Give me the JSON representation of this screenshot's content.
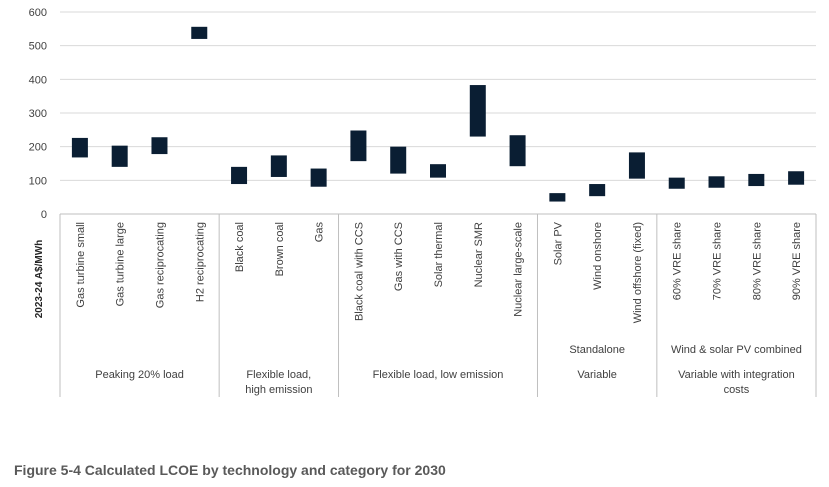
{
  "chart_data": {
    "type": "floating-bar",
    "ylabel": "2023-24 A$/MWh",
    "ylim": [
      0,
      600
    ],
    "yticks": [
      0,
      100,
      200,
      300,
      400,
      500,
      600
    ],
    "grid": true,
    "categories": [
      "Gas turbine small",
      "Gas turbine large",
      "Gas reciprocating",
      "H2 reciprocating",
      "Black coal",
      "Brown coal",
      "Gas",
      "Black coal with CCS",
      "Gas with CCS",
      "Solar thermal",
      "Nuclear SMR",
      "Nuclear large-scale",
      "Solar PV",
      "Wind onshore",
      "Wind offshore (fixed)",
      "60% VRE share",
      "70% VRE share",
      "80% VRE share",
      "90% VRE share"
    ],
    "ranges": [
      [
        168,
        226
      ],
      [
        140,
        203
      ],
      [
        178,
        228
      ],
      [
        520,
        556
      ],
      [
        89,
        140
      ],
      [
        110,
        174
      ],
      [
        81,
        135
      ],
      [
        157,
        248
      ],
      [
        120,
        200
      ],
      [
        108,
        148
      ],
      [
        230,
        383
      ],
      [
        142,
        234
      ],
      [
        37,
        62
      ],
      [
        53,
        89
      ],
      [
        105,
        183
      ],
      [
        75,
        108
      ],
      [
        78,
        112
      ],
      [
        83,
        119
      ],
      [
        87,
        127
      ]
    ],
    "color": "#0a1e33",
    "groups": [
      {
        "label": "Peaking 20% load",
        "sublabel": "",
        "start": 0,
        "end": 4
      },
      {
        "label": "Flexible load, high emission",
        "sublabel": "",
        "start": 4,
        "end": 7
      },
      {
        "label": "Flexible load, low emission",
        "sublabel": "",
        "start": 7,
        "end": 12
      },
      {
        "label": "Variable",
        "sublabel": "Standalone",
        "start": 12,
        "end": 15
      },
      {
        "label": "Variable with integration costs",
        "sublabel": "Wind & solar PV combined",
        "start": 15,
        "end": 19
      }
    ]
  },
  "caption": "Figure 5-4 Calculated LCOE by technology and category for 2030"
}
